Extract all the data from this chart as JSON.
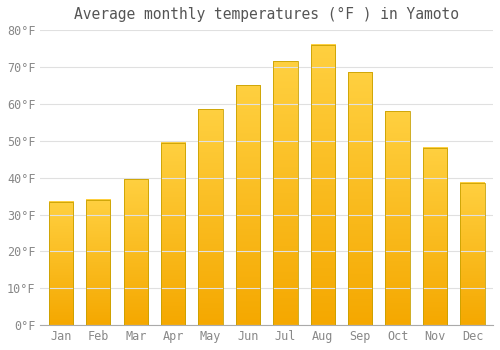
{
  "title": "Average monthly temperatures (°F ) in Yamoto",
  "months": [
    "Jan",
    "Feb",
    "Mar",
    "Apr",
    "May",
    "Jun",
    "Jul",
    "Aug",
    "Sep",
    "Oct",
    "Nov",
    "Dec"
  ],
  "values": [
    33.5,
    34.0,
    39.5,
    49.5,
    58.5,
    65.0,
    71.5,
    76.0,
    68.5,
    58.0,
    48.0,
    38.5
  ],
  "bar_color_top": "#FFD040",
  "bar_color_bottom": "#F5A800",
  "bar_edge_color": "#C8A000",
  "background_color": "#FFFFFF",
  "grid_color": "#E0E0E0",
  "text_color": "#888888",
  "ylim": [
    0,
    80
  ],
  "ytick_step": 10,
  "title_fontsize": 10.5,
  "tick_fontsize": 8.5
}
